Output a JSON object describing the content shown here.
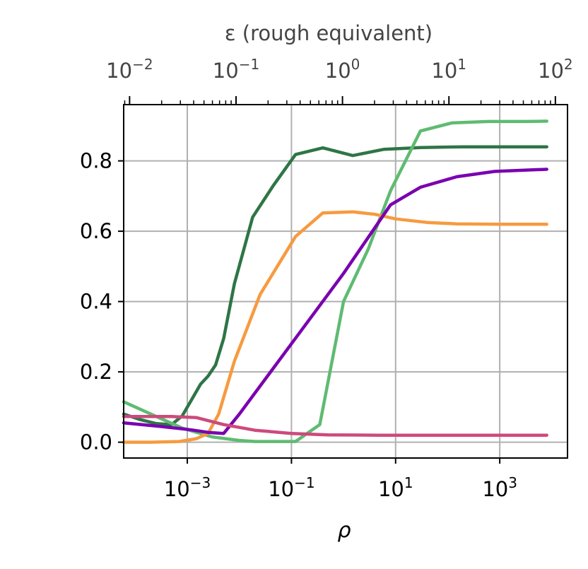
{
  "chart_data": {
    "type": "line",
    "title": "",
    "xlabel": "ρ",
    "ylabel": "",
    "top_xlabel": "ε (rough equivalent)",
    "x_scale": "log",
    "top_x_scale": "log",
    "xlim": [
      6e-05,
      20000
    ],
    "top_xlim": [
      0.0088,
      130
    ],
    "ylim": [
      -0.045,
      0.96
    ],
    "grid": true,
    "legend": "none",
    "x_ticks": [
      {
        "value": 0.001,
        "base": "10",
        "exp": "−3"
      },
      {
        "value": 0.1,
        "base": "10",
        "exp": "−1"
      },
      {
        "value": 10,
        "base": "10",
        "exp": "1"
      },
      {
        "value": 1000,
        "base": "10",
        "exp": "3"
      }
    ],
    "top_x_ticks": [
      {
        "value": 0.01,
        "base": "10",
        "exp": "−2"
      },
      {
        "value": 0.1,
        "base": "10",
        "exp": "−1"
      },
      {
        "value": 1,
        "base": "10",
        "exp": "0"
      },
      {
        "value": 10,
        "base": "10",
        "exp": "1"
      },
      {
        "value": 100,
        "base": "10",
        "exp": "2"
      }
    ],
    "y_ticks": [
      {
        "value": 0.0,
        "label": "0.0"
      },
      {
        "value": 0.2,
        "label": "0.2"
      },
      {
        "value": 0.4,
        "label": "0.4"
      },
      {
        "value": 0.6,
        "label": "0.6"
      },
      {
        "value": 0.8,
        "label": "0.8"
      }
    ],
    "series": [
      {
        "color": "#2e7546",
        "x": [
          6e-05,
          0.00012,
          0.00025,
          0.0005,
          0.0008,
          0.0012,
          0.0018,
          0.0025,
          0.0035,
          0.005,
          0.008,
          0.018,
          0.045,
          0.12,
          0.4,
          1.5,
          6,
          30,
          200,
          1500,
          8000
        ],
        "y": [
          0.08,
          0.065,
          0.053,
          0.05,
          0.075,
          0.12,
          0.165,
          0.188,
          0.22,
          0.295,
          0.45,
          0.64,
          0.73,
          0.818,
          0.837,
          0.815,
          0.833,
          0.838,
          0.84,
          0.84,
          0.84
        ]
      },
      {
        "color": "#5fbb72",
        "x": [
          6e-05,
          0.0002,
          0.0008,
          0.003,
          0.01,
          0.02,
          0.05,
          0.12,
          0.35,
          1,
          3,
          8,
          30,
          120,
          600,
          3000,
          8000
        ],
        "y": [
          0.115,
          0.08,
          0.04,
          0.015,
          0.005,
          0.002,
          0.002,
          0.002,
          0.05,
          0.4,
          0.55,
          0.715,
          0.885,
          0.908,
          0.912,
          0.912,
          0.913
        ]
      },
      {
        "color": "#f79a40",
        "x": [
          6e-05,
          0.0002,
          0.0007,
          0.0015,
          0.0025,
          0.004,
          0.008,
          0.025,
          0.12,
          0.4,
          1.5,
          4,
          10,
          40,
          150,
          1000,
          8000
        ],
        "y": [
          0.0,
          0.0,
          0.002,
          0.01,
          0.025,
          0.08,
          0.23,
          0.42,
          0.585,
          0.652,
          0.655,
          0.648,
          0.635,
          0.625,
          0.621,
          0.62,
          0.62
        ]
      },
      {
        "color": "#7a00b0",
        "x": [
          6e-05,
          0.0003,
          0.0012,
          0.0025,
          0.005,
          0.01,
          0.1,
          1,
          8,
          30,
          150,
          800,
          8000
        ],
        "y": [
          0.055,
          0.045,
          0.035,
          0.028,
          0.025,
          0.08,
          0.28,
          0.48,
          0.675,
          0.725,
          0.755,
          0.77,
          0.776
        ]
      },
      {
        "color": "#cc4a7c",
        "x": [
          6e-05,
          0.0005,
          0.0015,
          0.005,
          0.02,
          0.1,
          0.5,
          5,
          100,
          8000
        ],
        "y": [
          0.073,
          0.073,
          0.07,
          0.05,
          0.034,
          0.025,
          0.021,
          0.02,
          0.02,
          0.02
        ]
      }
    ]
  }
}
